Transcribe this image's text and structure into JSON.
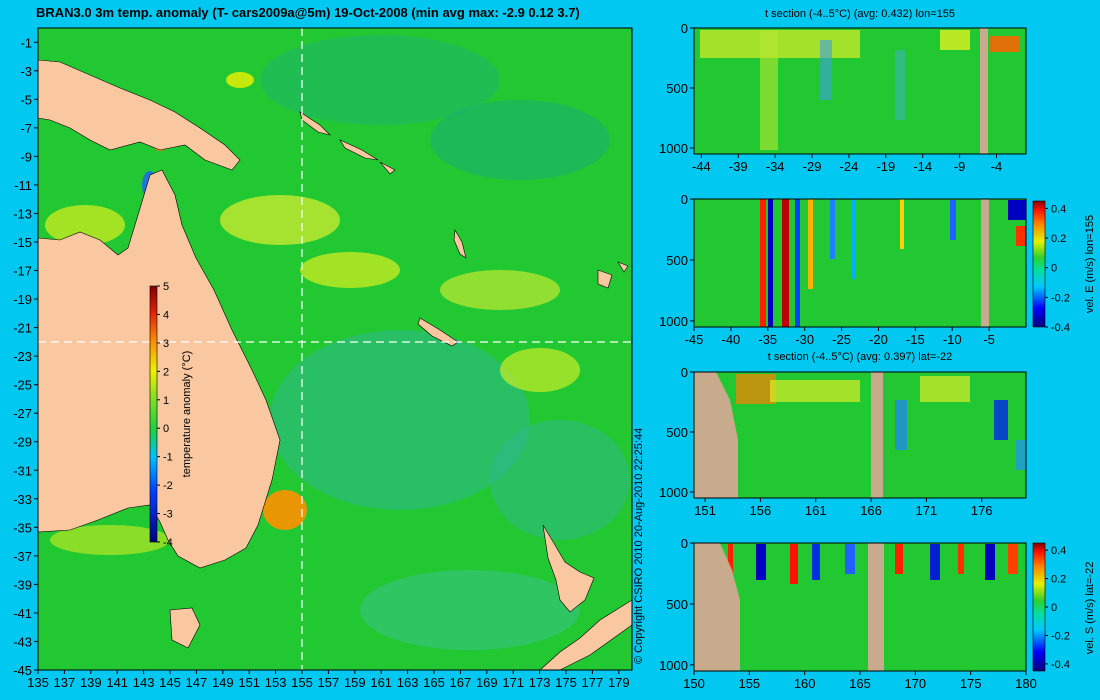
{
  "title": "BRAN3.0 3m temp. anomaly (T- cars2009a@5m) 19-Oct-2008 (min avg max: -2.9 0.12 3.7)",
  "copyright": "© Copyright CSIRO 2010   20-Aug-2010 22:25:44",
  "colors": {
    "background": "#00c8f0",
    "land": "#fac8a0",
    "ocean": "#22c832",
    "section_land": "#c8aa8c",
    "crosshair": "#ffffff"
  },
  "chart_data": [
    {
      "type": "heatmap",
      "name": "temp-map",
      "title": "BRAN3.0 3m temp. anomaly (T- cars2009a@5m) 19-Oct-2008 (min avg max: -2.9 0.12 3.7)",
      "x_ticks": [
        135,
        137,
        139,
        141,
        143,
        145,
        147,
        149,
        151,
        153,
        155,
        157,
        159,
        161,
        163,
        165,
        167,
        169,
        171,
        173,
        175,
        177,
        179
      ],
      "x_tick_labels": [
        "135",
        "137",
        "139",
        "141",
        "143",
        "145",
        "147",
        "149",
        "151",
        "153",
        "155",
        "157",
        "159",
        "161",
        "163",
        "165",
        "167",
        "169",
        "171",
        "173",
        "175",
        "177",
        "179"
      ],
      "y_ticks": [
        -1,
        -3,
        -5,
        -7,
        -9,
        -11,
        -13,
        -15,
        -17,
        -19,
        -21,
        -23,
        -25,
        -27,
        -29,
        -31,
        -33,
        -35,
        -37,
        -39,
        -41,
        -43,
        -45
      ],
      "y_tick_labels": [
        "-1",
        "-3",
        "-5",
        "-7",
        "-9",
        "-11",
        "-13",
        "-15",
        "-17",
        "-19",
        "-21",
        "-23",
        "-25",
        "-27",
        "-29",
        "-31",
        "-33",
        "-35",
        "-37",
        "-39",
        "-41",
        "-43",
        "-45"
      ],
      "xlim": [
        135,
        180
      ],
      "ylim": [
        -45,
        0
      ],
      "crosshair": {
        "lon": 155,
        "lat": -22
      },
      "colorbar": {
        "label": "temperature anomaly (°C)",
        "range": [
          -4,
          5
        ],
        "ticks": [
          -4,
          -3,
          -2,
          -1,
          0,
          1,
          2,
          3,
          4,
          5
        ],
        "tick_labels": [
          "-4",
          "-3",
          "-2",
          "-1",
          "0",
          "1",
          "2",
          "3",
          "4",
          "5"
        ]
      },
      "stats": {
        "min": -2.9,
        "avg": 0.12,
        "max": 3.7
      }
    },
    {
      "type": "heatmap",
      "name": "t-section-lon155",
      "title": "t section (-4..5°C) (avg: 0.432) lon=155",
      "xlim": [
        -45,
        0
      ],
      "ylim": [
        1050,
        0
      ],
      "x_ticks": [
        -44,
        -39,
        -34,
        -29,
        -24,
        -19,
        -14,
        -9,
        -4
      ],
      "x_tick_labels": [
        "-44",
        "-39",
        "-34",
        "-29",
        "-24",
        "-19",
        "-14",
        "-9",
        "-4"
      ],
      "y_ticks": [
        0,
        500,
        1000
      ],
      "y_tick_labels": [
        "0",
        "500",
        "1000"
      ]
    },
    {
      "type": "heatmap",
      "name": "velE-section-lon155",
      "title": "",
      "xlim": [
        -45,
        0
      ],
      "ylim": [
        1050,
        0
      ],
      "x_ticks": [
        -45,
        -40,
        -35,
        -30,
        -25,
        -20,
        -15,
        -10,
        -5
      ],
      "x_tick_labels": [
        "-45",
        "-40",
        "-35",
        "-30",
        "-25",
        "-20",
        "-15",
        "-10",
        "-5"
      ],
      "y_ticks": [
        0,
        500,
        1000
      ],
      "y_tick_labels": [
        "0",
        "500",
        "1000"
      ],
      "colorbar": {
        "label": "vel. E (m/s) lon=155",
        "range": [
          -0.4,
          0.45
        ],
        "ticks": [
          -0.4,
          -0.2,
          0,
          0.2,
          0.4
        ],
        "tick_labels": [
          "-0.4",
          "-0.2",
          "0",
          "0.2",
          "0.4"
        ]
      }
    },
    {
      "type": "heatmap",
      "name": "t-section-lat-22",
      "title": "t section (-4..5°C) (avg: 0.397) lat=-22",
      "xlim": [
        150,
        180
      ],
      "ylim": [
        1050,
        0
      ],
      "x_ticks": [
        151,
        156,
        161,
        166,
        171,
        176
      ],
      "x_tick_labels": [
        "151",
        "156",
        "161",
        "166",
        "171",
        "176"
      ],
      "y_ticks": [
        0,
        500,
        1000
      ],
      "y_tick_labels": [
        "0",
        "500",
        "1000"
      ]
    },
    {
      "type": "heatmap",
      "name": "velS-section-lat-22",
      "title": "",
      "xlim": [
        150,
        180
      ],
      "ylim": [
        1050,
        0
      ],
      "x_ticks": [
        150,
        155,
        160,
        165,
        170,
        175,
        180
      ],
      "x_tick_labels": [
        "150",
        "155",
        "160",
        "165",
        "170",
        "175",
        "180"
      ],
      "y_ticks": [
        0,
        500,
        1000
      ],
      "y_tick_labels": [
        "0",
        "500",
        "1000"
      ],
      "colorbar": {
        "label": "vel. S (m/s) lat=-22",
        "range": [
          -0.45,
          0.45
        ],
        "ticks": [
          -0.4,
          -0.2,
          0,
          0.2,
          0.4
        ],
        "tick_labels": [
          "-0.4",
          "-0.2",
          "0",
          "0.2",
          "0.4"
        ]
      }
    }
  ]
}
